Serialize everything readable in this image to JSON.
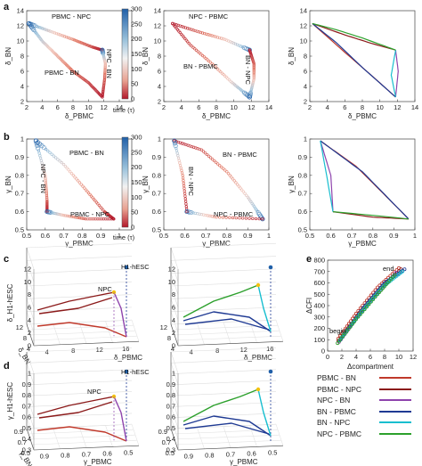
{
  "panel_labels": [
    "a",
    "b",
    "c",
    "d",
    "e"
  ],
  "legend": {
    "entries": [
      {
        "label": "PBMC - BN",
        "color": "#c0392b"
      },
      {
        "label": "PBMC - NPC",
        "color": "#8b1a1a"
      },
      {
        "label": "NPC - BN",
        "color": "#8e44ad"
      },
      {
        "label": "BN - PBMC",
        "color": "#1f3a93"
      },
      {
        "label": "BN - NPC",
        "color": "#17becf"
      },
      {
        "label": "NPC - PBMC",
        "color": "#2ca02c"
      }
    ]
  },
  "colorbar": {
    "label": "time (τ)",
    "ticks": [
      "300",
      "250",
      "200",
      "150",
      "100",
      "50",
      "0"
    ]
  },
  "annotations": {
    "a1": [
      "PBMC - NPC",
      "PBMC - BN",
      "NPC - BN"
    ],
    "a2": [
      "NPC - PBMC",
      "BN - PBMC",
      "BN - NPC"
    ],
    "b1": [
      "PBMC - BN",
      "NPC - BN",
      "PBMC - NPC"
    ],
    "b2": [
      "BN - PBMC",
      "BN - NPC",
      "NPC - PBMC"
    ],
    "c1": [
      "H1-hESC",
      "NPC"
    ],
    "c2": [
      "H1-hESC"
    ],
    "d1": [
      "H1-hESC",
      "NPC"
    ],
    "d2": [
      "H1-hESC"
    ],
    "e": [
      "end",
      "begin"
    ]
  },
  "chart_data": [
    {
      "panel": "a",
      "type": "line",
      "xlabel": "δ_PBMC",
      "ylabel": "δ_BN",
      "xlim": [
        2,
        14
      ],
      "ylim": [
        2,
        14
      ],
      "xticks": [
        "2",
        "4",
        "6",
        "8",
        "10",
        "12",
        "14"
      ],
      "yticks": [
        "2",
        "4",
        "6",
        "8",
        "10",
        "12",
        "14"
      ],
      "subplots": [
        {
          "series": [
            {
              "name": "PBMC - NPC",
              "points": [
                [
                  2.3,
                  12.3
                ],
                [
                  5,
                  11.3
                ],
                [
                  8,
                  10.2
                ],
                [
                  10.5,
                  9.2
                ],
                [
                  11.8,
                  8.8
                ]
              ]
            },
            {
              "name": "PBMC - BN",
              "points": [
                [
                  2.3,
                  12.3
                ],
                [
                  4,
                  10
                ],
                [
                  6,
                  8
                ],
                [
                  8,
                  6
                ],
                [
                  10,
                  4.5
                ],
                [
                  11.8,
                  2.6
                ]
              ]
            },
            {
              "name": "NPC - BN",
              "points": [
                [
                  11.8,
                  8.8
                ],
                [
                  12.2,
                  7
                ],
                [
                  12.1,
                  5
                ],
                [
                  11.8,
                  2.6
                ]
              ]
            }
          ]
        },
        {
          "series": [
            {
              "name": "NPC - PBMC",
              "points": [
                [
                  11.8,
                  8.8
                ],
                [
                  9,
                  10.2
                ],
                [
                  6,
                  11.2
                ],
                [
                  3,
                  12.3
                ]
              ]
            },
            {
              "name": "BN - PBMC",
              "points": [
                [
                  11.8,
                  2.6
                ],
                [
                  9.8,
                  4.5
                ],
                [
                  7.5,
                  7
                ],
                [
                  5,
                  9.5
                ],
                [
                  3,
                  12.3
                ]
              ]
            },
            {
              "name": "BN - NPC",
              "points": [
                [
                  11.8,
                  2.6
                ],
                [
                  12.3,
                  5
                ],
                [
                  12.3,
                  7
                ],
                [
                  11.8,
                  8.8
                ]
              ]
            }
          ]
        },
        {
          "series": [
            {
              "name": "PBMC - BN",
              "points": [
                [
                  2.3,
                  12.3
                ],
                [
                  6,
                  8.5
                ],
                [
                  9,
                  5.5
                ],
                [
                  11.8,
                  2.6
                ]
              ]
            },
            {
              "name": "PBMC - NPC",
              "points": [
                [
                  2.3,
                  12.3
                ],
                [
                  6,
                  10.8
                ],
                [
                  9,
                  9.7
                ],
                [
                  11.8,
                  8.8
                ]
              ]
            },
            {
              "name": "NPC - BN",
              "points": [
                [
                  11.8,
                  8.8
                ],
                [
                  12.1,
                  6
                ],
                [
                  11.8,
                  2.6
                ]
              ]
            },
            {
              "name": "BN - PBMC",
              "points": [
                [
                  11.8,
                  2.6
                ],
                [
                  8,
                  6.5
                ],
                [
                  5,
                  9.8
                ],
                [
                  2.3,
                  12.3
                ]
              ]
            },
            {
              "name": "BN - NPC",
              "points": [
                [
                  11.8,
                  2.6
                ],
                [
                  11.3,
                  5.5
                ],
                [
                  11.8,
                  8.8
                ]
              ]
            },
            {
              "name": "NPC - PBMC",
              "points": [
                [
                  11.8,
                  8.8
                ],
                [
                  8,
                  10.4
                ],
                [
                  5,
                  11.5
                ],
                [
                  2.3,
                  12.3
                ]
              ]
            }
          ]
        }
      ]
    },
    {
      "panel": "b",
      "type": "line",
      "xlabel": "γ_PBMC",
      "ylabel": "γ_BN",
      "xlim": [
        0.5,
        1.0
      ],
      "ylim": [
        0.5,
        1.0
      ],
      "xticks": [
        "0.5",
        "0.6",
        "0.7",
        "0.8",
        "0.9",
        "1"
      ],
      "yticks": [
        "0.5",
        "0.6",
        "0.7",
        "0.8",
        "0.9",
        "1"
      ],
      "subplots": [
        {
          "series": [
            {
              "name": "PBMC - BN",
              "points": [
                [
                  0.55,
                  0.99
                ],
                [
                  0.7,
                  0.86
                ],
                [
                  0.82,
                  0.72
                ],
                [
                  0.92,
                  0.6
                ],
                [
                  0.97,
                  0.56
                ]
              ]
            },
            {
              "name": "NPC - BN",
              "points": [
                [
                  0.55,
                  0.99
                ],
                [
                  0.6,
                  0.8
                ],
                [
                  0.61,
                  0.66
                ],
                [
                  0.61,
                  0.6
                ]
              ]
            },
            {
              "name": "PBMC - NPC",
              "points": [
                [
                  0.61,
                  0.6
                ],
                [
                  0.7,
                  0.58
                ],
                [
                  0.82,
                  0.56
                ],
                [
                  0.97,
                  0.56
                ]
              ]
            }
          ]
        },
        {
          "series": [
            {
              "name": "BN - PBMC",
              "points": [
                [
                  0.97,
                  0.56
                ],
                [
                  0.9,
                  0.68
                ],
                [
                  0.8,
                  0.82
                ],
                [
                  0.68,
                  0.94
                ],
                [
                  0.55,
                  0.99
                ]
              ]
            },
            {
              "name": "BN - NPC",
              "points": [
                [
                  0.55,
                  0.99
                ],
                [
                  0.59,
                  0.8
                ],
                [
                  0.61,
                  0.6
                ]
              ]
            },
            {
              "name": "NPC - PBMC",
              "points": [
                [
                  0.61,
                  0.6
                ],
                [
                  0.75,
                  0.57
                ],
                [
                  0.97,
                  0.56
                ]
              ]
            }
          ]
        },
        {
          "series": [
            {
              "name": "PBMC - BN",
              "points": [
                [
                  0.55,
                  0.99
                ],
                [
                  0.72,
                  0.85
                ],
                [
                  0.85,
                  0.7
                ],
                [
                  0.97,
                  0.56
                ]
              ]
            },
            {
              "name": "PBMC - NPC",
              "points": [
                [
                  0.97,
                  0.56
                ],
                [
                  0.8,
                  0.57
                ],
                [
                  0.61,
                  0.6
                ]
              ]
            },
            {
              "name": "NPC - BN",
              "points": [
                [
                  0.61,
                  0.6
                ],
                [
                  0.6,
                  0.8
                ],
                [
                  0.55,
                  0.99
                ]
              ]
            },
            {
              "name": "BN - PBMC",
              "points": [
                [
                  0.55,
                  0.99
                ],
                [
                  0.75,
                  0.82
                ],
                [
                  0.97,
                  0.56
                ]
              ]
            },
            {
              "name": "BN - NPC",
              "points": [
                [
                  0.55,
                  0.99
                ],
                [
                  0.58,
                  0.8
                ],
                [
                  0.61,
                  0.6
                ]
              ]
            },
            {
              "name": "NPC - PBMC",
              "points": [
                [
                  0.61,
                  0.6
                ],
                [
                  0.8,
                  0.58
                ],
                [
                  0.97,
                  0.56
                ]
              ]
            }
          ]
        }
      ]
    },
    {
      "panel": "c",
      "type": "line",
      "xlabel": "δ_PBMC",
      "ylabel": "δ_H1-hESC",
      "zlabel": "δ_BN",
      "xticks": [
        "4",
        "8",
        "12",
        "16"
      ],
      "yticks": [
        "0",
        "2",
        "4",
        "6",
        "8",
        "10",
        "12"
      ],
      "zticks": [
        "12",
        "8",
        "4"
      ]
    },
    {
      "panel": "d",
      "type": "line",
      "xlabel": "γ_PBMC",
      "ylabel": "γ_H1-hESC",
      "zlabel": "γ_BN",
      "xticks": [
        "0.9",
        "0.8",
        "0.7",
        "0.6",
        "0.5"
      ],
      "yticks": [
        "0.3",
        "0.4",
        "0.5",
        "0.6",
        "0.7",
        "0.8",
        "0.9",
        "1"
      ],
      "zticks": [
        "0.9",
        "0.7",
        "0.5"
      ]
    },
    {
      "panel": "e",
      "type": "scatter",
      "xlabel": "Δcompartment",
      "ylabel": "ΔCFI",
      "xlim": [
        0,
        12
      ],
      "ylim": [
        0,
        800
      ],
      "xticks": [
        "0",
        "2",
        "4",
        "6",
        "8",
        "10",
        "12"
      ],
      "yticks": [
        "0",
        "100",
        "200",
        "300",
        "400",
        "500",
        "600",
        "700",
        "800"
      ],
      "series": [
        {
          "name": "PBMC - BN",
          "points": [
            [
              1.5,
              110
            ],
            [
              4,
              330
            ],
            [
              7,
              560
            ],
            [
              10,
              730
            ]
          ]
        },
        {
          "name": "PBMC - NPC",
          "points": [
            [
              1.5,
              90
            ],
            [
              4.5,
              340
            ],
            [
              7.5,
              560
            ],
            [
              10.3,
              720
            ]
          ]
        },
        {
          "name": "NPC - BN",
          "points": [
            [
              1.6,
              80
            ],
            [
              4.2,
              300
            ],
            [
              7.2,
              520
            ],
            [
              9.6,
              690
            ]
          ]
        },
        {
          "name": "BN - PBMC",
          "points": [
            [
              1.8,
              100
            ],
            [
              5,
              380
            ],
            [
              8,
              600
            ],
            [
              10.8,
              720
            ]
          ]
        },
        {
          "name": "BN - NPC",
          "points": [
            [
              1.7,
              95
            ],
            [
              4.8,
              350
            ],
            [
              7.8,
              570
            ],
            [
              10.5,
              700
            ]
          ]
        },
        {
          "name": "NPC - PBMC",
          "points": [
            [
              1.4,
              70
            ],
            [
              4,
              280
            ],
            [
              7,
              500
            ],
            [
              9.4,
              670
            ]
          ]
        }
      ]
    }
  ]
}
